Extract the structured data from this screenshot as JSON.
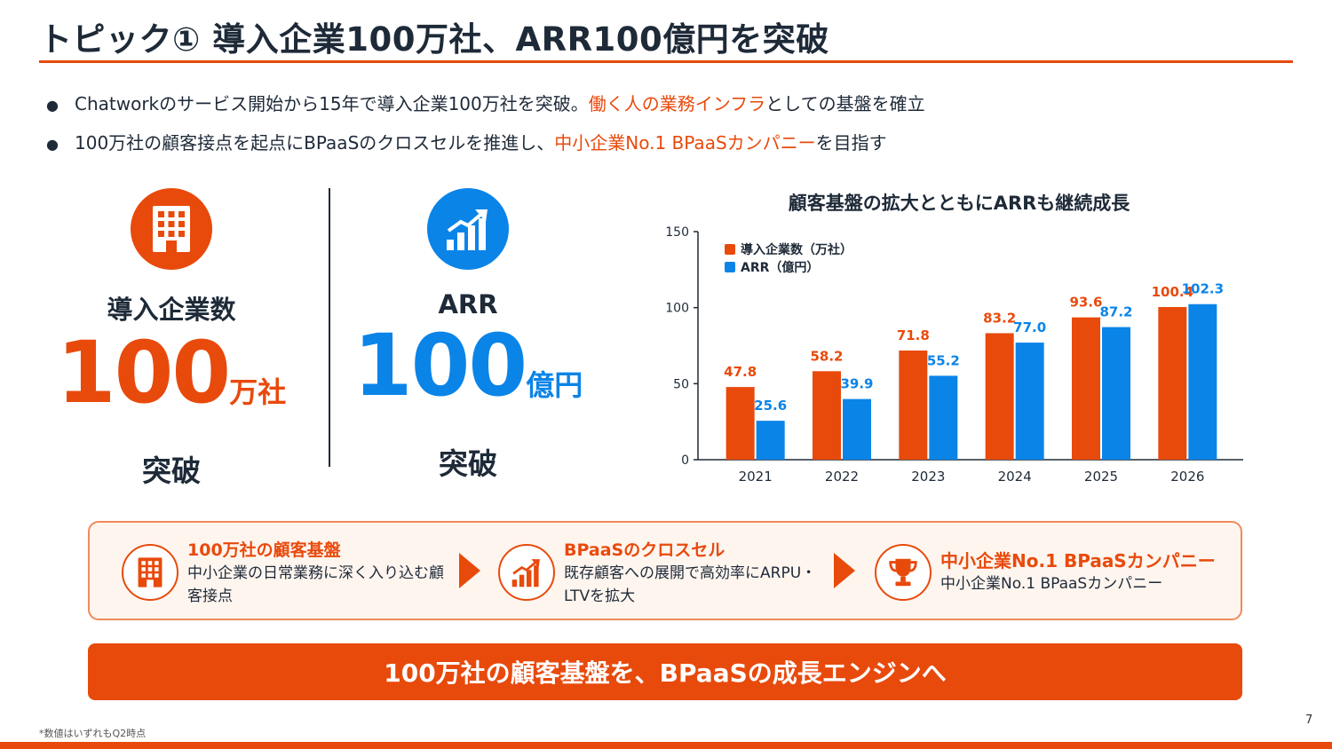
{
  "title": "トピック① 導入企業100万社、ARR100億円を突破",
  "bullets": [
    {
      "pre": "Chatworkのサービス開始から15年で導入企業100万社を突破。",
      "highlight": "働く人の業務インフラ",
      "post": "としての基盤を確立"
    },
    {
      "pre": "100万社の顧客接点を起点にBPaaSのクロスセルを推進し、",
      "highlight": "中小企業No.1 BPaaSカンパニー",
      "post": "を目指す"
    }
  ],
  "kpis": [
    {
      "icon": "building-icon",
      "label": "導入企業数",
      "number": "100",
      "unit": "万社",
      "sub": "突破",
      "color": "#e84a0c"
    },
    {
      "icon": "growth-chart-icon",
      "label": "ARR",
      "number": "100",
      "unit": "億円",
      "sub": "突破",
      "color": "#0b84e8"
    }
  ],
  "chart_data": {
    "type": "bar",
    "title": "顧客基盤の拡大とともにARRも継続成長",
    "categories": [
      "2021",
      "2022",
      "2023",
      "2024",
      "2025",
      "2026"
    ],
    "series": [
      {
        "name": "導入企業数（万社）",
        "color": "#e84a0c",
        "values": [
          47.8,
          58.2,
          71.8,
          83.2,
          93.6,
          100.4
        ]
      },
      {
        "name": "ARR（億円）",
        "color": "#0b84e8",
        "values": [
          25.6,
          39.9,
          55.2,
          77.0,
          87.2,
          102.3
        ]
      }
    ],
    "value_labels": [
      [
        "47.8",
        "58.2",
        "71.8",
        "83.2",
        "93.6",
        "100.4"
      ],
      [
        "25.6",
        "39.9",
        "55.2",
        "77.0",
        "87.2",
        "102.3"
      ]
    ],
    "ylim": [
      0,
      150
    ],
    "yticks": [
      0,
      50,
      100,
      150
    ],
    "legend": "top-left",
    "grid": false
  },
  "flow": [
    {
      "icon": "building-icon",
      "head": "100万社の顧客基盤",
      "desc": "中小企業の日常業務に深く入り込む顧客接点"
    },
    {
      "icon": "growth-chart-icon",
      "head": "BPaaSのクロスセル",
      "desc": "既存顧客への展開で高効率にARPU・LTVを拡大"
    },
    {
      "icon": "trophy-icon",
      "head": "中小企業No.1 BPaaSカンパニー",
      "desc": "中小企業No.1 BPaaSカンパニー"
    }
  ],
  "flow_arrow_icon": "triangle-right-icon",
  "banner": "100万社の顧客基盤を、BPaaSの成長エンジンへ",
  "footnote": "*数値はいずれもQ2時点",
  "page_number": "7",
  "colors": {
    "accent": "#e84a0c",
    "blue": "#0b84e8",
    "text": "#1e2a38"
  }
}
